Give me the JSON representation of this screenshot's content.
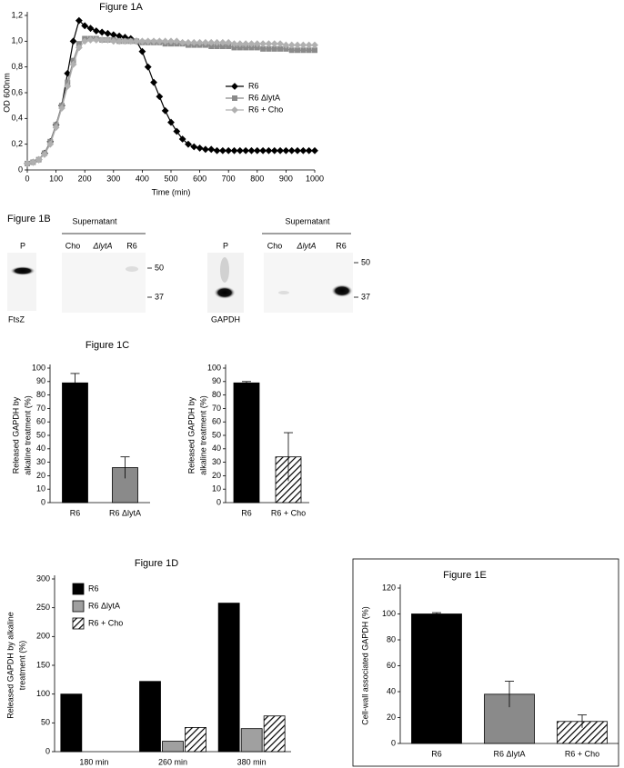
{
  "chart_data": [
    {
      "type": "line",
      "title": "Figure 1A",
      "x_label": "Time (min)",
      "y_label": "OD 600nm",
      "x": [
        0,
        20,
        40,
        60,
        80,
        100,
        120,
        140,
        160,
        180,
        200,
        220,
        240,
        260,
        280,
        300,
        320,
        340,
        360,
        380,
        400,
        420,
        440,
        460,
        480,
        500,
        520,
        540,
        560,
        580,
        600,
        620,
        640,
        660,
        680,
        700,
        720,
        740,
        760,
        780,
        800,
        820,
        840,
        860,
        880,
        900,
        920,
        940,
        960,
        980,
        1000
      ],
      "xlim": [
        0,
        1000
      ],
      "xticks": [
        0,
        100,
        200,
        300,
        400,
        500,
        600,
        700,
        800,
        900,
        1000
      ],
      "ylim": [
        0,
        1.2
      ],
      "yticks": [
        0,
        {
          "value": 0.2,
          "label": "0,2"
        },
        {
          "value": 0.4,
          "label": "0,4"
        },
        {
          "value": 0.6,
          "label": "0,6"
        },
        {
          "value": 0.8,
          "label": "0,8"
        },
        {
          "value": 1.0,
          "label": "1,0"
        },
        {
          "value": 1.2,
          "label": "1,2"
        }
      ],
      "series": [
        {
          "name": "R6",
          "color": "#000000",
          "marker": "diamond",
          "values": [
            0.05,
            0.06,
            0.08,
            0.13,
            0.22,
            0.35,
            0.5,
            0.75,
            1.0,
            1.16,
            1.12,
            1.1,
            1.08,
            1.07,
            1.06,
            1.05,
            1.04,
            1.03,
            1.02,
            1.0,
            0.92,
            0.8,
            0.68,
            0.57,
            0.46,
            0.37,
            0.3,
            0.24,
            0.2,
            0.18,
            0.17,
            0.16,
            0.16,
            0.15,
            0.15,
            0.15,
            0.15,
            0.15,
            0.15,
            0.15,
            0.15,
            0.15,
            0.15,
            0.15,
            0.15,
            0.15,
            0.15,
            0.15,
            0.15,
            0.15,
            0.15
          ]
        },
        {
          "name": "R6 ΔlytA",
          "color": "#8a8a8a",
          "marker": "square",
          "values": [
            0.05,
            0.06,
            0.08,
            0.13,
            0.22,
            0.35,
            0.5,
            0.68,
            0.85,
            0.98,
            1.02,
            1.02,
            1.02,
            1.01,
            1.01,
            1.01,
            1.0,
            1.0,
            1.0,
            1.0,
            0.99,
            0.99,
            0.99,
            0.99,
            0.98,
            0.98,
            0.98,
            0.98,
            0.97,
            0.97,
            0.97,
            0.97,
            0.96,
            0.96,
            0.96,
            0.96,
            0.95,
            0.95,
            0.95,
            0.95,
            0.95,
            0.94,
            0.94,
            0.94,
            0.94,
            0.94,
            0.93,
            0.93,
            0.93,
            0.93,
            0.93
          ]
        },
        {
          "name": "R6 + Cho",
          "color": "#b0b0b0",
          "marker": "diamond",
          "values": [
            0.05,
            0.06,
            0.08,
            0.12,
            0.2,
            0.33,
            0.48,
            0.65,
            0.82,
            0.95,
            1.0,
            1.01,
            1.01,
            1.01,
            1.01,
            1.0,
            1.0,
            1.0,
            1.0,
            1.0,
            1.0,
            1.0,
            1.0,
            1.0,
            1.0,
            1.0,
            1.0,
            0.99,
            0.99,
            0.99,
            0.99,
            0.99,
            0.99,
            0.99,
            0.99,
            0.99,
            0.98,
            0.98,
            0.98,
            0.98,
            0.98,
            0.98,
            0.98,
            0.98,
            0.98,
            0.97,
            0.97,
            0.97,
            0.97,
            0.97,
            0.97
          ]
        }
      ]
    },
    {
      "type": "bar",
      "title": "Figure 1C",
      "y_label": [
        "Released GAPDH by",
        "alkaline treatment (%)"
      ],
      "categories": [
        "R6",
        "R6 ΔlytA"
      ],
      "values": [
        89,
        26
      ],
      "errors": [
        7,
        8
      ],
      "colors": [
        "#000000",
        "#8a8a8a"
      ],
      "hatch": [
        false,
        false
      ],
      "ylim": [
        0,
        100
      ],
      "yticks": [
        0,
        10,
        20,
        30,
        40,
        50,
        60,
        70,
        80,
        90,
        100
      ]
    },
    {
      "type": "bar",
      "y_label": [
        "Released GAPDH by",
        "alkaline treatment (%)"
      ],
      "categories": [
        "R6",
        "R6 + Cho"
      ],
      "values": [
        89,
        34
      ],
      "errors": [
        1,
        18
      ],
      "colors": [
        "#000000",
        "#ffffff"
      ],
      "hatch": [
        false,
        true
      ],
      "ylim": [
        0,
        100
      ],
      "yticks": [
        0,
        10,
        20,
        30,
        40,
        50,
        60,
        70,
        80,
        90,
        100
      ]
    },
    {
      "type": "bar",
      "title": "Figure 1D",
      "y_label": [
        "Released GAPDH by alkaline",
        "treatment (%)"
      ],
      "categories": [
        "180 min",
        "260 min",
        "380 min"
      ],
      "legend": "upper left",
      "series": [
        {
          "name": "R6",
          "color": "#000000",
          "hatch": false,
          "values": [
            100,
            122,
            258
          ]
        },
        {
          "name": "R6 ΔlytA",
          "color": "#a0a0a0",
          "hatch": false,
          "values": [
            null,
            18,
            40
          ]
        },
        {
          "name": "R6 + Cho",
          "color": "#ffffff",
          "hatch": true,
          "values": [
            null,
            42,
            62
          ]
        }
      ],
      "ylim": [
        0,
        300
      ],
      "yticks": [
        0,
        50,
        100,
        150,
        200,
        250,
        300
      ]
    },
    {
      "type": "bar",
      "title": "Figure 1E",
      "y_label": "Cell-wall associated GAPDH (%)",
      "frame": true,
      "categories": [
        "R6",
        "R6 ΔlytA",
        "R6 + Cho"
      ],
      "values": [
        100,
        38,
        17
      ],
      "errors": [
        1,
        10,
        5
      ],
      "colors": [
        "#000000",
        "#8a8a8a",
        "#ffffff"
      ],
      "hatch": [
        false,
        false,
        true
      ],
      "ylim": [
        0,
        120
      ],
      "yticks": [
        0,
        20,
        40,
        60,
        80,
        100,
        120
      ]
    }
  ],
  "figure_1b": {
    "title": "Figure 1B",
    "panels": [
      {
        "pellet": "P",
        "header": "Supernatant",
        "lanes": [
          "Cho",
          "ΔlytA",
          "R6"
        ],
        "markers": [
          "50",
          "37"
        ],
        "protein": "FtsZ"
      },
      {
        "pellet": "P",
        "header": "Supernatant",
        "lanes": [
          "Cho",
          "ΔlytA",
          "R6"
        ],
        "markers": [
          "50",
          "37"
        ],
        "protein": "GAPDH"
      }
    ]
  }
}
